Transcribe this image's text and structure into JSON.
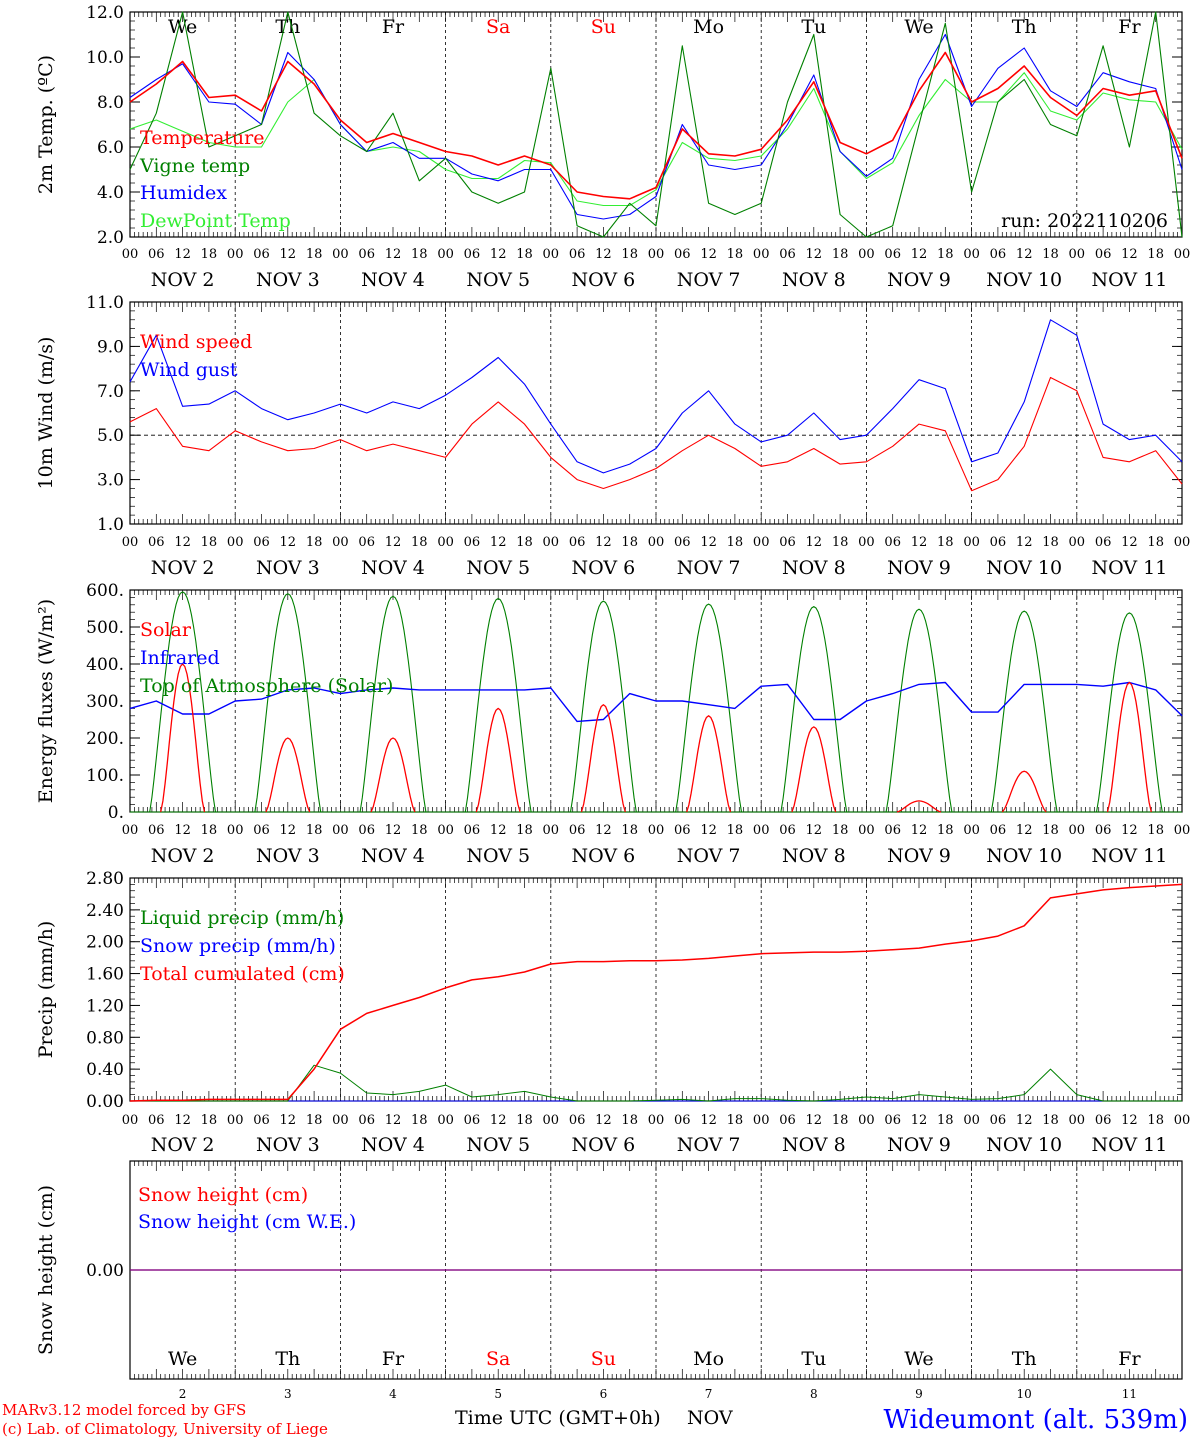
{
  "meta": {
    "run_label": "run: 2022110206",
    "credit_line1": "MARv3.12 model forced by GFS",
    "credit_line2": "(c) Lab. of Climatology, University of Liege",
    "xaxis_label": "Time UTC (GMT+0h)",
    "month_label": "NOV",
    "station": "Wideumont (alt. 539m)"
  },
  "colors": {
    "red": "#ff0000",
    "dark_green": "#008000",
    "blue": "#0000ff",
    "light_green": "#33ee33",
    "weekend": "#ff0000",
    "purple": "#800080"
  },
  "chart_data": [
    {
      "type": "line",
      "ylabel": "2m Temp. (ºC)",
      "ylim": [
        2.0,
        12.0
      ],
      "yticks": [
        "2.0",
        "4.0",
        "6.0",
        "8.0",
        "10.0",
        "12.0"
      ],
      "ytick_values": [
        2,
        4,
        6,
        8,
        10,
        12
      ],
      "weekdays": [
        "We",
        "Th",
        "Fr",
        "Sa",
        "Su",
        "Mo",
        "Tu",
        "We",
        "Th",
        "Fr"
      ],
      "weekday_colors": [
        "#000000",
        "#000000",
        "#000000",
        "#ff0000",
        "#ff0000",
        "#000000",
        "#000000",
        "#000000",
        "#000000",
        "#000000"
      ],
      "hour_ticks": [
        "00",
        "06",
        "12",
        "18"
      ],
      "day_labels": [
        "NOV  2",
        "NOV  3",
        "NOV  4",
        "NOV  5",
        "NOV  6",
        "NOV  7",
        "NOV  8",
        "NOV  9",
        "NOV 10",
        "NOV 11"
      ],
      "x_hours": [
        0,
        6,
        12,
        18,
        24,
        30,
        36,
        42,
        48,
        54,
        60,
        66,
        72,
        78,
        84,
        90,
        96,
        102,
        108,
        114,
        120,
        126,
        132,
        138,
        144,
        150,
        156,
        162,
        168,
        174,
        180,
        186,
        192,
        198,
        204,
        210,
        216,
        222,
        228,
        234,
        240
      ],
      "series": [
        {
          "name": "Temperature",
          "color": "#ff0000",
          "values": [
            8.0,
            8.8,
            9.8,
            8.2,
            8.3,
            7.6,
            9.8,
            8.8,
            7.2,
            6.2,
            6.6,
            6.2,
            5.8,
            5.6,
            5.2,
            5.6,
            5.2,
            4.0,
            3.8,
            3.7,
            4.2,
            6.8,
            5.7,
            5.6,
            5.9,
            7.2,
            8.9,
            6.2,
            5.7,
            6.3,
            8.5,
            10.2,
            8.0,
            8.6,
            9.6,
            8.2,
            7.4,
            8.6,
            8.3,
            8.5,
            5.5
          ]
        },
        {
          "name": "Vigne temp",
          "color": "#008000",
          "values": [
            5.0,
            7.5,
            12.0,
            6.0,
            6.5,
            7.0,
            12.0,
            7.5,
            6.5,
            5.8,
            7.5,
            4.5,
            5.5,
            4.0,
            3.5,
            4.0,
            9.5,
            2.5,
            2.0,
            3.5,
            2.5,
            10.5,
            3.5,
            3.0,
            3.5,
            8.0,
            11.0,
            3.0,
            2.0,
            2.5,
            7.0,
            11.5,
            4.0,
            8.0,
            9.0,
            7.0,
            6.5,
            10.5,
            6.0,
            12.0,
            2.0
          ]
        },
        {
          "name": "Humidex",
          "color": "#0000ff",
          "values": [
            8.2,
            9.0,
            9.7,
            8.0,
            7.9,
            7.0,
            10.2,
            9.0,
            7.0,
            5.8,
            6.2,
            5.5,
            5.5,
            4.8,
            4.5,
            5.0,
            5.0,
            3.0,
            2.8,
            3.0,
            3.8,
            7.0,
            5.2,
            5.0,
            5.2,
            7.0,
            9.2,
            5.8,
            4.7,
            5.5,
            9.0,
            11.0,
            7.8,
            9.5,
            10.4,
            8.5,
            7.8,
            9.3,
            8.9,
            8.6,
            5.0
          ]
        },
        {
          "name": "DewPoint Temp",
          "color": "#33ee33",
          "values": [
            6.8,
            7.2,
            6.7,
            6.2,
            6.0,
            6.0,
            8.0,
            9.0,
            7.0,
            5.8,
            6.0,
            5.8,
            5.0,
            4.6,
            4.6,
            5.4,
            5.3,
            3.6,
            3.4,
            3.4,
            4.1,
            6.2,
            5.5,
            5.4,
            5.6,
            6.8,
            8.6,
            5.8,
            4.6,
            5.3,
            7.4,
            9.0,
            8.0,
            8.0,
            9.3,
            7.6,
            7.2,
            8.4,
            8.1,
            8.0,
            5.9
          ]
        }
      ]
    },
    {
      "type": "line",
      "ylabel": "10m Wind (m/s)",
      "ylim": [
        1.0,
        11.0
      ],
      "yticks": [
        "1.0",
        "3.0",
        "5.0",
        "7.0",
        "9.0",
        "11.0"
      ],
      "ytick_values": [
        1,
        3,
        5,
        7,
        9,
        11
      ],
      "reference_line": 5.0,
      "hour_ticks": [
        "00",
        "06",
        "12",
        "18"
      ],
      "day_labels": [
        "NOV  2",
        "NOV  3",
        "NOV  4",
        "NOV  5",
        "NOV  6",
        "NOV  7",
        "NOV  8",
        "NOV  9",
        "NOV 10",
        "NOV 11"
      ],
      "x_hours": [
        0,
        6,
        12,
        18,
        24,
        30,
        36,
        42,
        48,
        54,
        60,
        66,
        72,
        78,
        84,
        90,
        96,
        102,
        108,
        114,
        120,
        126,
        132,
        138,
        144,
        150,
        156,
        162,
        168,
        174,
        180,
        186,
        192,
        198,
        204,
        210,
        216,
        222,
        228,
        234,
        240
      ],
      "series": [
        {
          "name": "Wind speed",
          "color": "#ff0000",
          "values": [
            5.6,
            6.2,
            4.5,
            4.3,
            5.2,
            4.7,
            4.3,
            4.4,
            4.8,
            4.3,
            4.6,
            4.3,
            4.0,
            5.5,
            6.5,
            5.5,
            4.0,
            3.0,
            2.6,
            3.0,
            3.5,
            4.3,
            5.0,
            4.4,
            3.6,
            3.8,
            4.4,
            3.7,
            3.8,
            4.5,
            5.5,
            5.2,
            2.5,
            3.0,
            4.5,
            7.6,
            7.0,
            4.0,
            3.8,
            4.3,
            2.8
          ]
        },
        {
          "name": "Wind gust",
          "color": "#0000ff",
          "values": [
            7.4,
            9.5,
            6.3,
            6.4,
            7.0,
            6.2,
            5.7,
            6.0,
            6.4,
            6.0,
            6.5,
            6.2,
            6.8,
            7.6,
            8.5,
            7.3,
            5.5,
            3.8,
            3.3,
            3.7,
            4.4,
            6.0,
            7.0,
            5.5,
            4.7,
            5.0,
            6.0,
            4.8,
            5.0,
            6.2,
            7.5,
            7.1,
            3.8,
            4.2,
            6.5,
            10.2,
            9.5,
            5.5,
            4.8,
            5.0,
            3.8
          ]
        }
      ]
    },
    {
      "type": "line",
      "ylabel": "Energy fluxes (W/m²)",
      "ylim": [
        0,
        600
      ],
      "yticks": [
        "0.",
        "100.",
        "200.",
        "300.",
        "400.",
        "500.",
        "600."
      ],
      "ytick_values": [
        0,
        100,
        200,
        300,
        400,
        500,
        600
      ],
      "hour_ticks": [
        "00",
        "06",
        "12",
        "18"
      ],
      "day_labels": [
        "NOV  2",
        "NOV  3",
        "NOV  4",
        "NOV  5",
        "NOV  6",
        "NOV  7",
        "NOV  8",
        "NOV  9",
        "NOV 10",
        "NOV 11"
      ],
      "daily_peaks": {
        "Solar": [
          400,
          200,
          200,
          280,
          290,
          260,
          230,
          30,
          110,
          350
        ],
        "Top of Atmosphere (Solar)": [
          595,
          590,
          583,
          577,
          570,
          562,
          555,
          548,
          543,
          538
        ]
      },
      "x_hours_infrared": [
        0,
        6,
        12,
        18,
        24,
        30,
        36,
        42,
        48,
        54,
        60,
        66,
        72,
        78,
        84,
        90,
        96,
        102,
        108,
        114,
        120,
        126,
        132,
        138,
        144,
        150,
        156,
        162,
        168,
        174,
        180,
        186,
        192,
        198,
        204,
        210,
        216,
        222,
        228,
        234,
        240
      ],
      "series": [
        {
          "name": "Solar",
          "color": "#ff0000"
        },
        {
          "name": "Infrared",
          "color": "#0000ff",
          "values": [
            280,
            300,
            265,
            265,
            300,
            305,
            330,
            335,
            320,
            330,
            335,
            330,
            330,
            330,
            330,
            330,
            335,
            245,
            250,
            320,
            300,
            300,
            290,
            280,
            340,
            345,
            250,
            250,
            300,
            320,
            345,
            350,
            270,
            270,
            345,
            345,
            345,
            340,
            350,
            330,
            260
          ]
        },
        {
          "name": "Top of Atmosphere (Solar)",
          "color": "#008000"
        }
      ]
    },
    {
      "type": "line",
      "ylabel": "Precip (mm/h)",
      "ylim": [
        0.0,
        2.8
      ],
      "yticks": [
        "0.00",
        "0.40",
        "0.80",
        "1.20",
        "1.60",
        "2.00",
        "2.40",
        "2.80"
      ],
      "ytick_values": [
        0,
        0.4,
        0.8,
        1.2,
        1.6,
        2.0,
        2.4,
        2.8
      ],
      "hour_ticks": [
        "00",
        "06",
        "12",
        "18"
      ],
      "day_labels": [
        "NOV  2",
        "NOV  3",
        "NOV  4",
        "NOV  5",
        "NOV  6",
        "NOV  7",
        "NOV  8",
        "NOV  9",
        "NOV 10",
        "NOV 11"
      ],
      "x_hours": [
        0,
        6,
        12,
        18,
        24,
        30,
        36,
        42,
        48,
        54,
        60,
        66,
        72,
        78,
        84,
        90,
        96,
        102,
        108,
        114,
        120,
        126,
        132,
        138,
        144,
        150,
        156,
        162,
        168,
        174,
        180,
        186,
        192,
        198,
        204,
        210,
        216,
        222,
        228,
        234,
        240
      ],
      "series": [
        {
          "name": "Liquid precip (mm/h)",
          "color": "#008000",
          "values": [
            0,
            0,
            0,
            0,
            0,
            0,
            0,
            0.45,
            0.35,
            0.1,
            0.08,
            0.12,
            0.2,
            0.05,
            0.08,
            0.12,
            0.05,
            0,
            0,
            0,
            0.01,
            0.02,
            0,
            0.03,
            0.03,
            0.01,
            0,
            0.02,
            0.05,
            0.03,
            0.08,
            0.05,
            0.02,
            0.03,
            0.08,
            0.4,
            0.08,
            0,
            0,
            0,
            0
          ]
        },
        {
          "name": "Snow precip (mm/h)",
          "color": "#0000ff",
          "values": [
            0,
            0,
            0,
            0,
            0,
            0,
            0,
            0,
            0,
            0,
            0,
            0,
            0,
            0,
            0,
            0,
            0,
            0,
            0,
            0,
            0,
            0,
            0,
            0,
            0,
            0,
            0,
            0,
            0,
            0,
            0,
            0,
            0,
            0,
            0,
            0,
            0,
            0,
            0,
            0,
            0
          ]
        },
        {
          "name": "Total cumulated (cm)",
          "color": "#ff0000",
          "values": [
            0,
            0.01,
            0.01,
            0.02,
            0.02,
            0.02,
            0.02,
            0.4,
            0.9,
            1.1,
            1.2,
            1.3,
            1.42,
            1.52,
            1.56,
            1.62,
            1.72,
            1.75,
            1.75,
            1.76,
            1.76,
            1.77,
            1.79,
            1.82,
            1.85,
            1.86,
            1.87,
            1.87,
            1.88,
            1.9,
            1.92,
            1.97,
            2.01,
            2.07,
            2.2,
            2.55,
            2.6,
            2.65,
            2.68,
            2.7,
            2.72
          ]
        }
      ]
    },
    {
      "type": "line",
      "ylabel": "Snow height (cm)",
      "ytick": "0.00",
      "hour_ticks": [
        "00",
        "06",
        "12",
        "18"
      ],
      "weekdays": [
        "We",
        "Th",
        "Fr",
        "Sa",
        "Su",
        "Mo",
        "Tu",
        "We",
        "Th",
        "Fr"
      ],
      "weekday_colors": [
        "#000000",
        "#000000",
        "#000000",
        "#ff0000",
        "#ff0000",
        "#000000",
        "#000000",
        "#000000",
        "#000000",
        "#000000"
      ],
      "day_numbers": [
        "2",
        "3",
        "4",
        "5",
        "6",
        "7",
        "8",
        "9",
        "10",
        "11"
      ],
      "series": [
        {
          "name": "Snow height (cm)",
          "color": "#ff0000",
          "value": 0.0
        },
        {
          "name": "Snow height (cm W.E.)",
          "color": "#0000ff",
          "value": 0.0
        }
      ]
    }
  ]
}
